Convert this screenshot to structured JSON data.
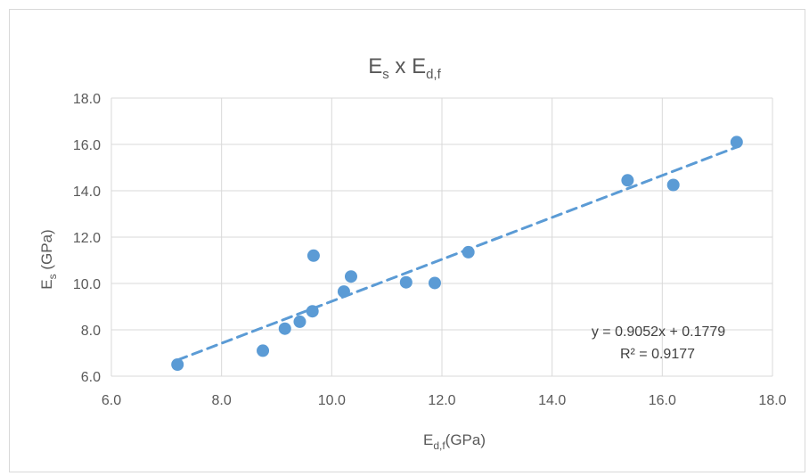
{
  "chart_data": {
    "type": "scatter",
    "title": {
      "main": "E",
      "sub1": "s",
      "mid": " x E",
      "sub2": "d,f"
    },
    "xlabel": {
      "main": "E",
      "sub": "d,f",
      "rest": "(GPa)"
    },
    "ylabel": {
      "main": "E",
      "sub": "s",
      "rest": " (GPa)"
    },
    "xlim": [
      6.0,
      18.0
    ],
    "ylim": [
      6.0,
      18.0
    ],
    "x_ticks": [
      "6.0",
      "8.0",
      "10.0",
      "12.0",
      "14.0",
      "16.0",
      "18.0"
    ],
    "y_ticks": [
      "6.0",
      "8.0",
      "10.0",
      "12.0",
      "14.0",
      "16.0",
      "18.0"
    ],
    "grid": true,
    "legend": "none",
    "series": [
      {
        "color": "#5b9bd5",
        "points": [
          {
            "x": 7.2,
            "y": 6.5
          },
          {
            "x": 8.75,
            "y": 7.1
          },
          {
            "x": 9.15,
            "y": 8.05
          },
          {
            "x": 9.42,
            "y": 8.35
          },
          {
            "x": 9.65,
            "y": 8.8
          },
          {
            "x": 9.67,
            "y": 11.2
          },
          {
            "x": 10.22,
            "y": 9.65
          },
          {
            "x": 10.35,
            "y": 10.3
          },
          {
            "x": 11.35,
            "y": 10.05
          },
          {
            "x": 11.87,
            "y": 10.02
          },
          {
            "x": 12.48,
            "y": 11.35
          },
          {
            "x": 15.37,
            "y": 14.45
          },
          {
            "x": 16.2,
            "y": 14.25
          },
          {
            "x": 17.35,
            "y": 16.1
          }
        ]
      }
    ],
    "trendline": {
      "type": "linear",
      "slope": 0.9052,
      "intercept": 0.1779,
      "x_range": [
        7.2,
        17.35
      ],
      "style": "dashed",
      "color": "#5b9bd5",
      "equation": "y = 0.9052x + 0.1779",
      "r2": "R² = 0.9177"
    }
  }
}
